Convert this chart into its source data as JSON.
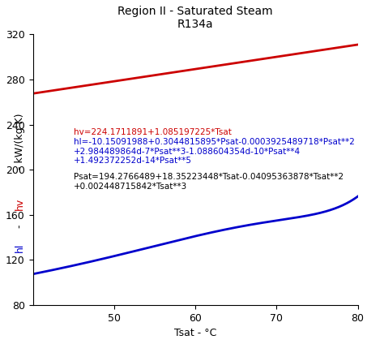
{
  "title_line1": "Region II - Saturated Steam",
  "title_line2": "R134a",
  "xlabel": "Tsat - °C",
  "ylabel_parts": [
    "hl",
    " - ",
    "hv",
    " - kW/(kg K)"
  ],
  "ylabel_colors": [
    "#0000cc",
    "#000000",
    "#cc0000",
    "#000000"
  ],
  "xlim": [
    40,
    80
  ],
  "ylim": [
    80,
    320
  ],
  "xticks": [
    50,
    60,
    70,
    80
  ],
  "yticks": [
    80,
    120,
    160,
    200,
    240,
    280,
    320
  ],
  "tsat_range": [
    40,
    80
  ],
  "hv_coeffs": [
    224.1711891,
    1.085197225
  ],
  "psat_coeffs": [
    194.2766489,
    18.35223448,
    -0.04095363878,
    0.002448715842
  ],
  "hl_coeffs": [
    -10.15091988,
    0.3044815895,
    -0.0003925489718,
    2.984489864e-07,
    -1.088604354e-10,
    1.492372252e-14
  ],
  "hv_color": "#cc0000",
  "hl_color": "#0000cc",
  "annotation_hv_color": "#cc0000",
  "annotation_hl_color": "#0000cc",
  "annotation_psat_color": "#000000",
  "annotation_hv": "hv=224.1711891+1.085197225*Tsat",
  "annotation_hl_line1": "hl=-10.15091988+0.3044815895*Psat-0.0003925489718*Psat**2",
  "annotation_hl_line2": "+2.984489864d-7*Psat**3-1.088604354d-10*Psat**4",
  "annotation_hl_line3": "+1.492372252d-14*Psat**5",
  "annotation_psat_line1": "Psat=194.2766489+18.35223448*Tsat-0.04095363878*Tsat**2",
  "annotation_psat_line2": "+0.002448715842*Tsat**3",
  "line_width": 2.0,
  "bg_color": "#ffffff",
  "title_fontsize": 10,
  "label_fontsize": 9,
  "annot_fontsize": 7.5,
  "tick_fontsize": 9
}
